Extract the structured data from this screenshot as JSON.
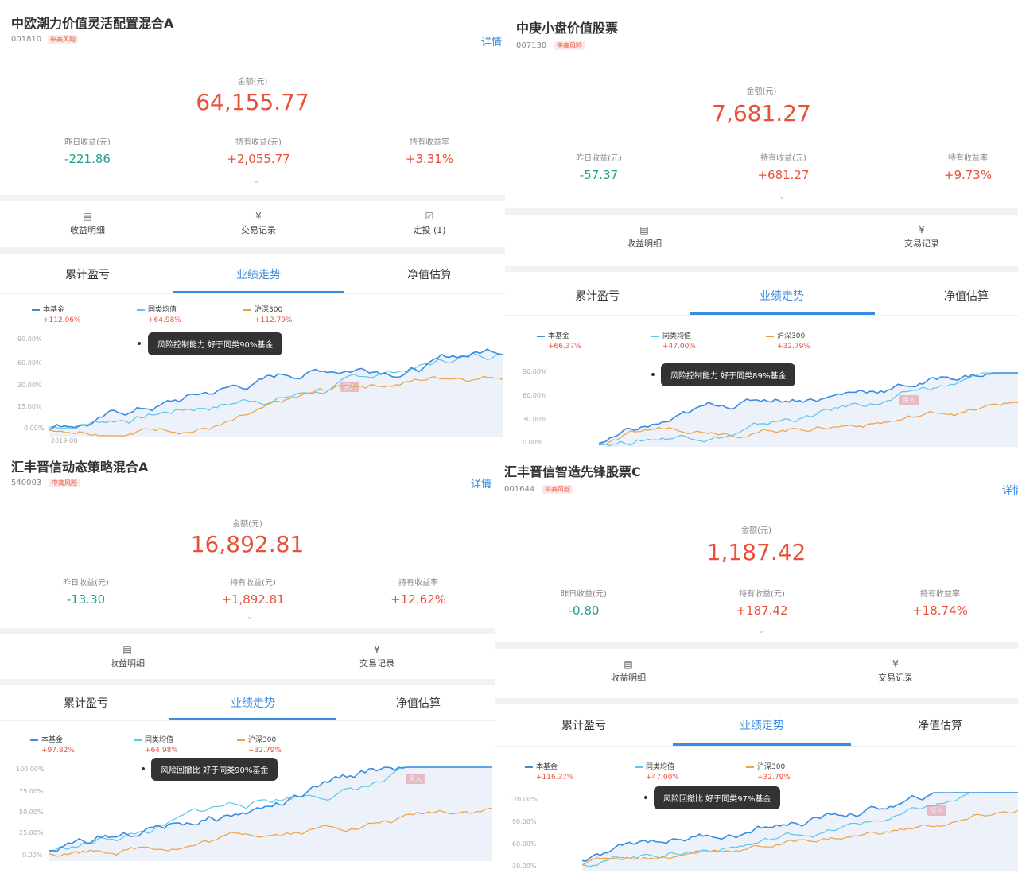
{
  "funds": [
    {
      "name": "中欧潮力价值灵活配置混合A",
      "code": "001810",
      "risk": "中高风险",
      "detail": "详情",
      "amount_label": "金额(元)",
      "amount": "64,155.77",
      "stats": [
        {
          "label": "昨日收益(元)",
          "value": "-221.86"
        },
        {
          "label": "持有收益(元)",
          "value": "+2,055.77"
        },
        {
          "label": "持有收益率",
          "value": "+3.31%"
        }
      ],
      "actions": [
        {
          "icon": "document-icon",
          "label": "收益明细"
        },
        {
          "icon": "yuan-circle-icon",
          "label": "交易记录"
        },
        {
          "icon": "check-square-icon",
          "label": "定投 (1)"
        }
      ],
      "tabs": [
        "累计盈亏",
        "业绩走势",
        "净值估算"
      ],
      "legend": [
        {
          "name": "本基金",
          "value": "+112.06%",
          "color": "#3a8ce0"
        },
        {
          "name": "同类均值",
          "value": "+64.98%",
          "color": "#5bc7e8"
        },
        {
          "name": "沪深300",
          "value": "+112.79%",
          "color": "#f0a040"
        }
      ],
      "tooltip": "风险控制能力 好于同类90%基金",
      "buy": "买入",
      "y_labels": [
        "90.00%",
        "60.00%",
        "30.00%",
        "15.00%",
        "0.00%"
      ],
      "x_label": "2019-08"
    },
    {
      "name": "中庚小盘价值股票",
      "code": "007130",
      "risk": "中高风险",
      "detail": "",
      "amount_label": "金额(元)",
      "amount": "7,681.27",
      "stats": [
        {
          "label": "昨日收益(元)",
          "value": "-57.37"
        },
        {
          "label": "持有收益(元)",
          "value": "+681.27"
        },
        {
          "label": "持有收益率",
          "value": "+9.73%"
        }
      ],
      "actions": [
        {
          "icon": "document-icon",
          "label": "收益明细"
        },
        {
          "icon": "yuan-circle-icon",
          "label": "交易记录"
        }
      ],
      "tabs": [
        "累计盈亏",
        "业绩走势",
        "净值估算"
      ],
      "legend": [
        {
          "name": "本基金",
          "value": "+66.37%",
          "color": "#3a8ce0"
        },
        {
          "name": "同类均值",
          "value": "+47.00%",
          "color": "#5bc7e8"
        },
        {
          "name": "沪深300",
          "value": "+32.79%",
          "color": "#f0a040"
        }
      ],
      "tooltip": "风险控制能力 好于同类89%基金",
      "buy": "买入",
      "y_labels": [
        "90.00%",
        "60.00%",
        "30.00%",
        "0.00%"
      ],
      "x_label": ""
    },
    {
      "name": "汇丰晋信动态策略混合A",
      "code": "540003",
      "risk": "中高风险",
      "detail": "详情",
      "amount_label": "金额(元)",
      "amount": "16,892.81",
      "stats": [
        {
          "label": "昨日收益(元)",
          "value": "-13.30"
        },
        {
          "label": "持有收益(元)",
          "value": "+1,892.81"
        },
        {
          "label": "持有收益率",
          "value": "+12.62%"
        }
      ],
      "actions": [
        {
          "icon": "document-icon",
          "label": "收益明细"
        },
        {
          "icon": "yuan-circle-icon",
          "label": "交易记录"
        }
      ],
      "tabs": [
        "累计盈亏",
        "业绩走势",
        "净值估算"
      ],
      "legend": [
        {
          "name": "本基金",
          "value": "+97.82%",
          "color": "#3a8ce0"
        },
        {
          "name": "同类均值",
          "value": "+64.98%",
          "color": "#5bc7e8"
        },
        {
          "name": "沪深300",
          "value": "+32.79%",
          "color": "#f0a040"
        }
      ],
      "tooltip": "风险回撤比 好于同类90%基金",
      "buy": "买入",
      "y_labels": [
        "100.00%",
        "75.00%",
        "50.00%",
        "25.00%",
        "0.00%"
      ],
      "x_label": ""
    },
    {
      "name": "汇丰晋信智造先锋股票C",
      "code": "001644",
      "risk": "中高风险",
      "detail": "详情",
      "amount_label": "金额(元)",
      "amount": "1,187.42",
      "stats": [
        {
          "label": "昨日收益(元)",
          "value": "-0.80"
        },
        {
          "label": "持有收益(元)",
          "value": "+187.42"
        },
        {
          "label": "持有收益率",
          "value": "+18.74%"
        }
      ],
      "actions": [
        {
          "icon": "document-icon",
          "label": "收益明细"
        },
        {
          "icon": "yuan-circle-icon",
          "label": "交易记录"
        }
      ],
      "tabs": [
        "累计盈亏",
        "业绩走势",
        "净值估算"
      ],
      "legend": [
        {
          "name": "本基金",
          "value": "+116.37%",
          "color": "#3a8ce0"
        },
        {
          "name": "同类均值",
          "value": "+47.00%",
          "color": "#5bc7e8"
        },
        {
          "name": "沪深300",
          "value": "+32.79%",
          "color": "#f0a040"
        }
      ],
      "tooltip": "风险回撤比 好于同类97%基金",
      "buy": "买入",
      "y_labels": [
        "120.00%",
        "90.00%",
        "60.00%",
        "30.00%"
      ],
      "x_label": ""
    }
  ]
}
